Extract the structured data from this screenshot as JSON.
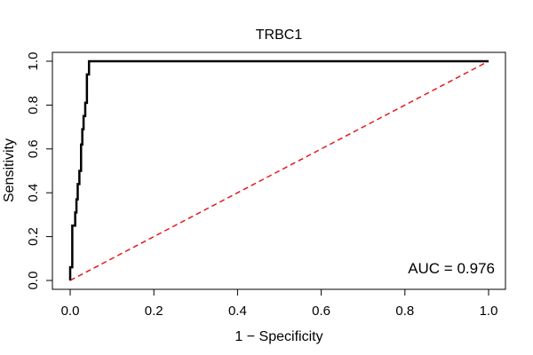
{
  "chart_data": {
    "type": "line",
    "title": "TRBC1",
    "xlabel": "1 − Specificity",
    "ylabel": "Sensitivity",
    "xlim": [
      0,
      1
    ],
    "ylim": [
      0,
      1
    ],
    "xticks": [
      0.0,
      0.2,
      0.4,
      0.6,
      0.8,
      1.0
    ],
    "xtick_labels": [
      "0.0",
      "0.2",
      "0.4",
      "0.6",
      "0.8",
      "1.0"
    ],
    "yticks": [
      0.0,
      0.2,
      0.4,
      0.6,
      0.8,
      1.0
    ],
    "ytick_labels": [
      "0.0",
      "0.2",
      "0.4",
      "0.6",
      "0.8",
      "1.0"
    ],
    "grid": false,
    "annotation": "AUC = 0.976",
    "series": [
      {
        "color": "#000000",
        "style": "solid",
        "x": [
          0.0,
          0.0,
          0.005,
          0.005,
          0.012,
          0.012,
          0.015,
          0.015,
          0.018,
          0.018,
          0.022,
          0.022,
          0.026,
          0.026,
          0.029,
          0.029,
          0.032,
          0.032,
          0.036,
          0.036,
          0.04,
          0.04,
          0.045,
          0.045,
          1.0
        ],
        "y": [
          0.0,
          0.06,
          0.06,
          0.25,
          0.25,
          0.31,
          0.31,
          0.37,
          0.37,
          0.44,
          0.44,
          0.5,
          0.5,
          0.62,
          0.62,
          0.69,
          0.69,
          0.75,
          0.75,
          0.81,
          0.81,
          0.94,
          0.94,
          1.0,
          1.0
        ]
      },
      {
        "color": "#e41a1c",
        "style": "dashed",
        "x": [
          0.0,
          1.0
        ],
        "y": [
          0.0,
          1.0
        ]
      }
    ]
  }
}
